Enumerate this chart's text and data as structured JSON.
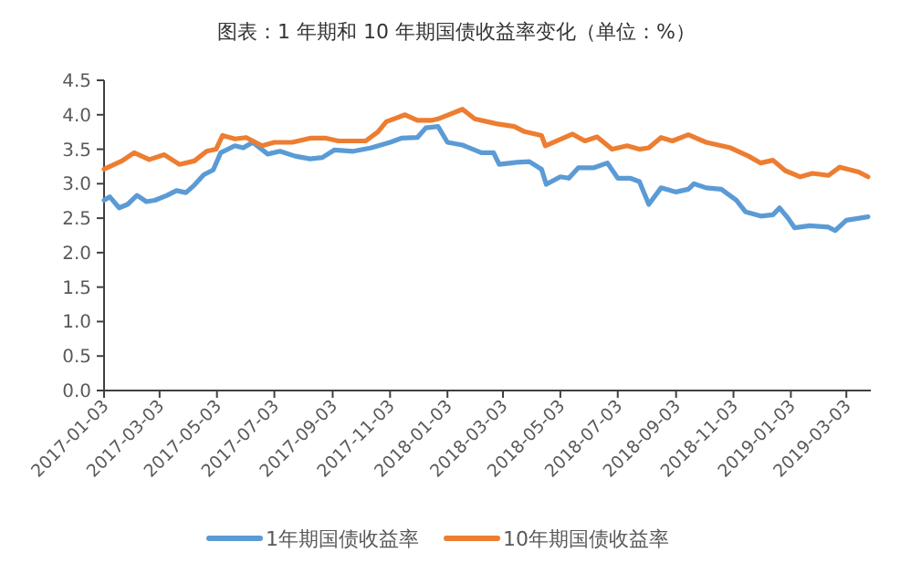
{
  "chart_data": {
    "type": "line",
    "title": "图表：1 年期和 10 年期国债收益率变化（单位：%）",
    "xlim": [
      "2017-01-03",
      "2019-03-29"
    ],
    "xticks": [
      "2017-01-03",
      "2017-03-03",
      "2017-05-03",
      "2017-07-03",
      "2017-09-03",
      "2017-11-03",
      "2018-01-03",
      "2018-03-03",
      "2018-05-03",
      "2018-07-03",
      "2018-09-03",
      "2018-11-03",
      "2019-01-03",
      "2019-03-03"
    ],
    "ylim": [
      0,
      4.5
    ],
    "yticks": [
      {
        "value": 0,
        "label": "0.0"
      },
      0.5,
      {
        "value": 1,
        "label": "1.0"
      },
      1.5,
      {
        "value": 2,
        "label": "2.0"
      },
      2.5,
      {
        "value": 3,
        "label": "3.0"
      },
      3.5,
      {
        "value": 4,
        "label": "4.0"
      },
      4.5
    ],
    "legend": "bottom",
    "grid": false,
    "series": [
      {
        "name": "1年期国债收益率",
        "color": "#5b9bd5",
        "x": [
          "2017-01-03",
          "2017-01-09",
          "2017-01-19",
          "2017-01-28",
          "2017-02-07",
          "2017-02-17",
          "2017-02-26",
          "2017-03-11",
          "2017-03-21",
          "2017-03-31",
          "2017-04-09",
          "2017-04-19",
          "2017-04-29",
          "2017-05-07",
          "2017-05-22",
          "2017-05-31",
          "2017-06-10",
          "2017-06-26",
          "2017-07-09",
          "2017-07-25",
          "2017-08-10",
          "2017-08-23",
          "2017-09-05",
          "2017-09-25",
          "2017-10-14",
          "2017-11-03",
          "2017-11-15",
          "2017-12-02",
          "2017-12-11",
          "2017-12-24",
          "2018-01-03",
          "2018-01-19",
          "2018-02-08",
          "2018-02-21",
          "2018-02-27",
          "2018-03-18",
          "2018-03-31",
          "2018-04-13",
          "2018-04-18",
          "2018-05-03",
          "2018-05-12",
          "2018-05-22",
          "2018-06-07",
          "2018-06-22",
          "2018-07-03",
          "2018-07-16",
          "2018-07-26",
          "2018-08-05",
          "2018-08-18",
          "2018-09-03",
          "2018-09-16",
          "2018-09-22",
          "2018-10-05",
          "2018-10-21",
          "2018-11-06",
          "2018-11-16",
          "2018-12-02",
          "2018-12-15",
          "2018-12-22",
          "2018-12-31",
          "2019-01-07",
          "2019-01-23",
          "2019-02-12",
          "2019-02-19",
          "2019-03-03",
          "2019-03-26"
        ],
        "values": [
          2.76,
          2.81,
          2.65,
          2.7,
          2.83,
          2.74,
          2.76,
          2.83,
          2.9,
          2.87,
          2.98,
          3.13,
          3.2,
          3.45,
          3.55,
          3.52,
          3.6,
          3.43,
          3.47,
          3.4,
          3.36,
          3.38,
          3.49,
          3.47,
          3.52,
          3.6,
          3.66,
          3.67,
          3.81,
          3.83,
          3.6,
          3.56,
          3.45,
          3.45,
          3.28,
          3.31,
          3.32,
          3.21,
          2.99,
          3.1,
          3.08,
          3.23,
          3.23,
          3.3,
          3.08,
          3.08,
          3.03,
          2.7,
          2.94,
          2.88,
          2.92,
          3.0,
          2.94,
          2.92,
          2.76,
          2.59,
          2.53,
          2.55,
          2.65,
          2.5,
          2.36,
          2.39,
          2.37,
          2.32,
          2.47,
          2.52
        ]
      },
      {
        "name": "10年期国债收益率",
        "color": "#ed7d31",
        "x": [
          "2017-01-03",
          "2017-01-22",
          "2017-02-04",
          "2017-02-20",
          "2017-03-08",
          "2017-03-24",
          "2017-04-09",
          "2017-04-22",
          "2017-05-02",
          "2017-05-09",
          "2017-05-22",
          "2017-06-03",
          "2017-06-20",
          "2017-07-03",
          "2017-07-22",
          "2017-08-10",
          "2017-08-27",
          "2017-09-09",
          "2017-10-08",
          "2017-10-21",
          "2017-10-30",
          "2017-11-19",
          "2017-12-02",
          "2017-12-18",
          "2017-12-24",
          "2018-01-19",
          "2018-02-01",
          "2018-02-24",
          "2018-03-15",
          "2018-03-25",
          "2018-04-13",
          "2018-04-17",
          "2018-05-16",
          "2018-05-29",
          "2018-06-11",
          "2018-06-27",
          "2018-07-13",
          "2018-07-26",
          "2018-08-05",
          "2018-08-18",
          "2018-08-30",
          "2018-09-16",
          "2018-10-05",
          "2018-10-31",
          "2018-11-19",
          "2018-12-02",
          "2018-12-15",
          "2018-12-28",
          "2019-01-13",
          "2019-01-26",
          "2019-02-12",
          "2019-02-24",
          "2019-03-16",
          "2019-03-26"
        ],
        "values": [
          3.21,
          3.33,
          3.45,
          3.35,
          3.42,
          3.28,
          3.33,
          3.47,
          3.5,
          3.7,
          3.65,
          3.67,
          3.55,
          3.6,
          3.6,
          3.66,
          3.66,
          3.62,
          3.62,
          3.75,
          3.9,
          4.0,
          3.92,
          3.92,
          3.94,
          4.08,
          3.94,
          3.87,
          3.83,
          3.76,
          3.7,
          3.55,
          3.72,
          3.62,
          3.68,
          3.5,
          3.55,
          3.5,
          3.52,
          3.67,
          3.62,
          3.71,
          3.6,
          3.52,
          3.4,
          3.3,
          3.34,
          3.19,
          3.1,
          3.15,
          3.12,
          3.24,
          3.17,
          3.1
        ]
      }
    ]
  }
}
